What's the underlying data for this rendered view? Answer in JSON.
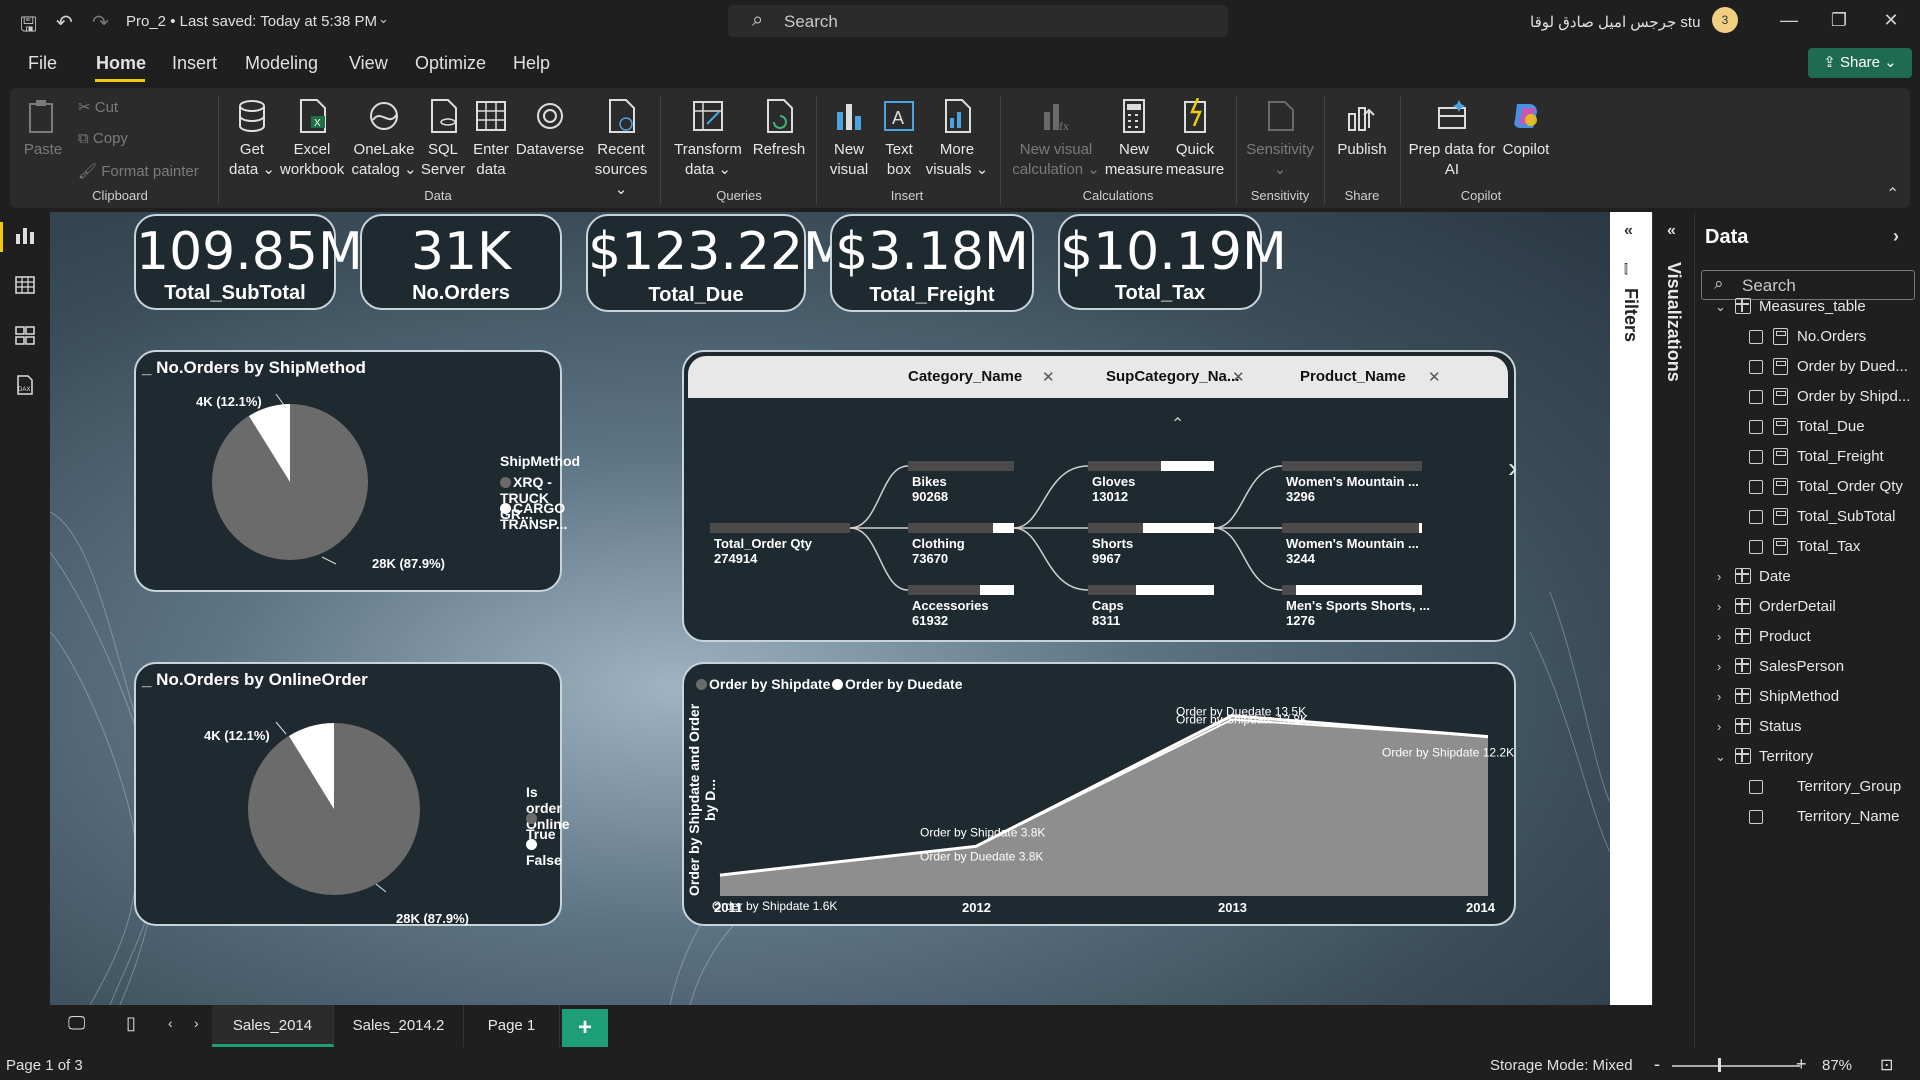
{
  "titlebar": {
    "title": "Pro_2 • Last saved: Today at 5:38 PM",
    "search_placeholder": "Search",
    "user_name": "جرجس اميل صادق لوقا stu",
    "user_badge": "3"
  },
  "menu": {
    "items": [
      "File",
      "Home",
      "Insert",
      "Modeling",
      "View",
      "Optimize",
      "Help"
    ],
    "share_label": "Share"
  },
  "ribbon": {
    "clipboard": {
      "paste": "Paste",
      "cut": "Cut",
      "copy": "Copy",
      "format_painter": "Format painter",
      "group": "Clipboard"
    },
    "data": {
      "get_data": [
        "Get",
        "data ⌄"
      ],
      "excel": [
        "Excel",
        "workbook"
      ],
      "onelake": [
        "OneLake",
        "catalog ⌄"
      ],
      "sql": [
        "SQL",
        "Server"
      ],
      "enter_data": [
        "Enter",
        "data"
      ],
      "dataverse": [
        "Dataverse",
        ""
      ],
      "recent": [
        "Recent",
        "sources ⌄"
      ],
      "group": "Data"
    },
    "queries": {
      "transform": [
        "Transform",
        "data ⌄"
      ],
      "refresh": [
        "Refresh",
        ""
      ],
      "group": "Queries"
    },
    "insert": {
      "new_visual": [
        "New",
        "visual"
      ],
      "text_box": [
        "Text",
        "box"
      ],
      "more_visuals": [
        "More",
        "visuals ⌄"
      ],
      "group": "Insert"
    },
    "calculations": {
      "new_visual_calc": [
        "New visual",
        "calculation ⌄"
      ],
      "new_measure": [
        "New",
        "measure"
      ],
      "quick_measure": [
        "Quick",
        "measure"
      ],
      "group": "Calculations"
    },
    "sensitivity": {
      "label": [
        "Sensitivity",
        "⌄"
      ],
      "group": "Sensitivity"
    },
    "share": {
      "publish": [
        "Publish",
        ""
      ],
      "group": "Share"
    },
    "copilot": {
      "prep": [
        "Prep data for",
        "AI"
      ],
      "copilot": [
        "Copilot",
        ""
      ],
      "group": "Copilot"
    }
  },
  "kpis": [
    {
      "value": "109.85M",
      "label": "Total_SubTotal"
    },
    {
      "value": "31K",
      "label": "No.Orders"
    },
    {
      "value": "$123.22M",
      "label": "Total_Due"
    },
    {
      "value": "$3.18M",
      "label": "Total_Freight"
    },
    {
      "value": "$10.19M",
      "label": "Total_Tax"
    }
  ],
  "pie_shipmethod": {
    "title": "_ No.Orders by ShipMethod",
    "legend_title": "ShipMethod",
    "legend": [
      "XRQ - TRUCK GR...",
      "CARGO TRANSP..."
    ],
    "label_small": "4K (12.1%)",
    "label_large": "28K (87.9%)",
    "colors": [
      "#6b6b6b",
      "#ffffff"
    ]
  },
  "pie_online": {
    "title": "_ No.Orders by OnlineOrder",
    "legend_title": "Is order Online",
    "legend": [
      "True",
      "False"
    ],
    "label_small": "4K (12.1%)",
    "label_large": "28K (87.9%)",
    "colors": [
      "#6b6b6b",
      "#ffffff"
    ]
  },
  "decomp": {
    "headers": [
      "Category_Name",
      "SupCategory_Na...",
      "Product_Name"
    ],
    "root": {
      "name": "Total_Order Qty",
      "value": "274914"
    },
    "level1": [
      {
        "name": "Bikes",
        "value": "90268",
        "frac": 0.0
      },
      {
        "name": "Clothing",
        "value": "73670",
        "frac": 0.2
      },
      {
        "name": "Accessories",
        "value": "61932",
        "frac": 0.32
      }
    ],
    "level2": [
      {
        "name": "Gloves",
        "value": "13012",
        "frac": 0.42
      },
      {
        "name": "Shorts",
        "value": "9967",
        "frac": 0.56
      },
      {
        "name": "Caps",
        "value": "8311",
        "frac": 0.62
      }
    ],
    "level3": [
      {
        "name": "Women's Mountain ...",
        "value": "3296",
        "frac": 0.0
      },
      {
        "name": "Women's Mountain ...",
        "value": "3244",
        "frac": 0.02
      },
      {
        "name": "Men's Sports Shorts, ...",
        "value": "1276",
        "frac": 0.9
      }
    ]
  },
  "area_chart": {
    "legend": [
      "Order by Shipdate",
      "Order by Duedate"
    ],
    "ylabel": "Order by Shipdate and Order by D..."
  },
  "chart_data": {
    "type": "area",
    "categories": [
      "2011",
      "2012",
      "2013",
      "2014"
    ],
    "series": [
      {
        "name": "Order by Shipdate",
        "values": [
          1.6,
          3.8,
          13.8,
          12.2
        ],
        "labels": [
          "Order by Shipdate 1.6K",
          "Order by Shipdate 3.8K",
          "Order by Shipdate 13.8K",
          "Order by Shipdate 12.2K"
        ]
      },
      {
        "name": "Order by Duedate",
        "values": [
          1.6,
          3.8,
          13.5,
          12.2
        ],
        "labels": [
          "",
          "Order by Duedate 3.8K",
          "Order by Duedate 13.5K",
          ""
        ]
      }
    ],
    "ylim": [
      0,
      15
    ]
  },
  "panes": {
    "filters": "Filters",
    "visualizations": "Visualizations"
  },
  "data_pane": {
    "title": "Data",
    "search_placeholder": "Search",
    "measures_table": "Measures_table",
    "measures": [
      "No.Orders",
      "Order by Dued...",
      "Order by Shipd...",
      "Total_Due",
      "Total_Freight",
      "Total_Order Qty",
      "Total_SubTotal",
      "Total_Tax"
    ],
    "tables": [
      "Date",
      "OrderDetail",
      "Product",
      "SalesPerson",
      "ShipMethod",
      "Status"
    ],
    "territory": "Territory",
    "territory_fields": [
      "Territory_Group",
      "Territory_Name"
    ]
  },
  "pages": [
    "Sales_2014",
    "Sales_2014.2",
    "Page 1"
  ],
  "add_page": "+",
  "status": {
    "page": "Page 1 of 3",
    "storage": "Storage Mode: Mixed",
    "zoom": "87%"
  }
}
